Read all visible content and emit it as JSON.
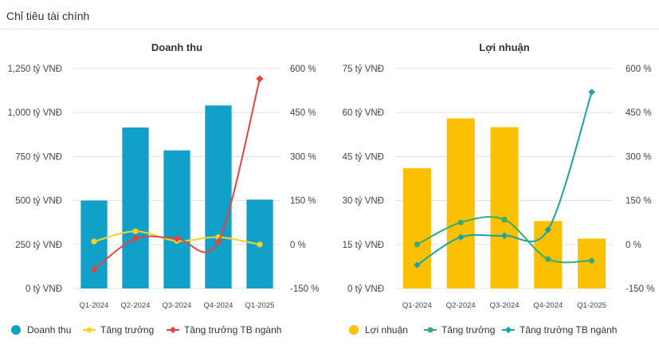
{
  "page": {
    "title": "Chỉ tiêu tài chính"
  },
  "colors": {
    "revenue_bar": "#10a0c8",
    "profit_bar": "#fbc000",
    "growth_revenue": "#fcd128",
    "industry_revenue": "#e2443e",
    "growth_profit": "#3aab6e",
    "industry_profit": "#1ca1a8"
  },
  "chart_data": [
    {
      "type": "bar",
      "title": "Doanh thu",
      "categories": [
        "Q1-2024",
        "Q2-2024",
        "Q3-2024",
        "Q4-2024",
        "Q1-2025"
      ],
      "y_left": {
        "ticks": [
          "0 tỷ VNĐ",
          "250 tỷ VNĐ",
          "500 tỷ VNĐ",
          "750 tỷ VNĐ",
          "1,000 tỷ VNĐ",
          "1,250 tỷ VNĐ"
        ],
        "min": 0,
        "max": 1250
      },
      "y_right": {
        "ticks": [
          "-150 %",
          "0 %",
          "150 %",
          "300 %",
          "450 %",
          "600 %"
        ],
        "min": -150,
        "max": 600
      },
      "series": [
        {
          "name": "Doanh thu",
          "kind": "bar",
          "axis": "left",
          "values": [
            500,
            915,
            785,
            1040,
            505
          ]
        },
        {
          "name": "Tăng trưởng",
          "kind": "line",
          "axis": "right",
          "values": [
            10,
            45,
            12,
            25,
            0
          ]
        },
        {
          "name": "Tăng trưởng TB ngành",
          "kind": "line",
          "axis": "right",
          "values": [
            -85,
            20,
            20,
            10,
            565
          ]
        }
      ],
      "legend_position": "bottom"
    },
    {
      "type": "bar",
      "title": "Lợi nhuận",
      "categories": [
        "Q1-2024",
        "Q2-2024",
        "Q3-2024",
        "Q4-2024",
        "Q1-2025"
      ],
      "y_left": {
        "ticks": [
          "0 tỷ VNĐ",
          "15 tỷ VNĐ",
          "30 tỷ VNĐ",
          "45 tỷ VNĐ",
          "60 tỷ VNĐ",
          "75 tỷ VNĐ"
        ],
        "min": 0,
        "max": 75
      },
      "y_right": {
        "ticks": [
          "-150 %",
          "0 %",
          "150 %",
          "300 %",
          "450 %",
          "600 %"
        ],
        "min": -150,
        "max": 600
      },
      "series": [
        {
          "name": "Lợi nhuận",
          "kind": "bar",
          "axis": "left",
          "values": [
            41,
            58,
            55,
            23,
            17
          ]
        },
        {
          "name": "Tăng trưởng",
          "kind": "line",
          "axis": "right",
          "values": [
            0,
            75,
            85,
            -50,
            -55
          ]
        },
        {
          "name": "Tăng trưởng TB ngành",
          "kind": "line",
          "axis": "right",
          "values": [
            -70,
            25,
            30,
            50,
            520
          ]
        }
      ],
      "legend_position": "bottom"
    }
  ]
}
